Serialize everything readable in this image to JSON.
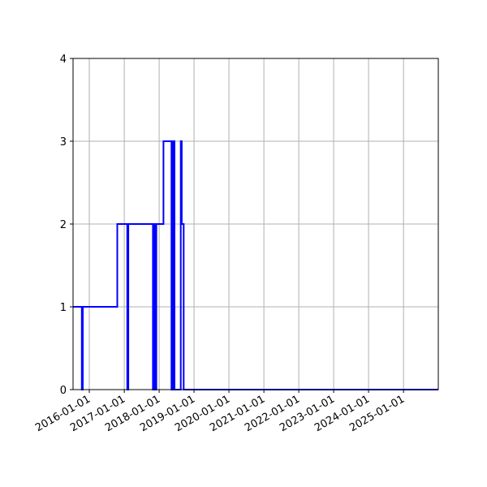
{
  "chart_data": {
    "type": "line",
    "title": "",
    "xlabel": "",
    "ylabel": "",
    "line_color": "#0000ff",
    "grid": true,
    "grid_color": "#b0b0b0",
    "xlim": [
      "2015-07-15",
      "2025-12-31"
    ],
    "ylim": [
      0,
      4
    ],
    "x_ticks": [
      "2016-01-01",
      "2017-01-01",
      "2018-01-01",
      "2019-01-01",
      "2020-01-01",
      "2021-01-01",
      "2022-01-01",
      "2023-01-01",
      "2024-01-01",
      "2025-01-01"
    ],
    "y_ticks": [
      0,
      1,
      2,
      3,
      4
    ],
    "series": [
      {
        "step": "post",
        "x": [
          "2015-07-15",
          "2015-10-15",
          "2015-10-25",
          "2016-10-20",
          "2017-02-01",
          "2017-02-12",
          "2017-10-28",
          "2017-11-05",
          "2017-11-12",
          "2017-11-18",
          "2017-11-25",
          "2017-12-02",
          "2018-02-15",
          "2018-05-10",
          "2018-05-14",
          "2018-05-18",
          "2018-05-22",
          "2018-05-26",
          "2018-05-30",
          "2018-06-03",
          "2018-06-07",
          "2018-06-11",
          "2018-08-15",
          "2018-08-25",
          "2018-09-15",
          "2025-12-31"
        ],
        "y": [
          1,
          0,
          1,
          2,
          0,
          2,
          0,
          2,
          0,
          2,
          0,
          2,
          3,
          0,
          3,
          0,
          3,
          0,
          3,
          0,
          3,
          0,
          3,
          2,
          0,
          0
        ]
      }
    ]
  }
}
